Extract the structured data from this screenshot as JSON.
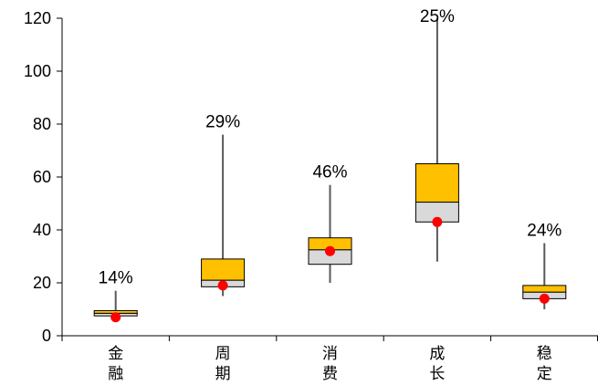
{
  "chart_data": {
    "type": "box",
    "title": "",
    "xlabel": "",
    "ylabel": "",
    "ylim": [
      0,
      120
    ],
    "yticks": [
      0,
      20,
      40,
      60,
      80,
      100,
      120
    ],
    "grid": false,
    "legend": "none",
    "categories": [
      "金融",
      "周期",
      "消费",
      "成长",
      "稳定"
    ],
    "boxes": [
      {
        "category": "金融",
        "min": 7,
        "q1": 7.5,
        "median": 8.5,
        "q3": 9.5,
        "max": 17,
        "mean": 7,
        "label": "14%"
      },
      {
        "category": "周期",
        "min": 15,
        "q1": 18.5,
        "median": 21,
        "q3": 29,
        "max": 76,
        "mean": 19,
        "label": "29%"
      },
      {
        "category": "消费",
        "min": 20,
        "q1": 27,
        "median": 32.5,
        "q3": 37,
        "max": 57,
        "mean": 32,
        "label": "46%"
      },
      {
        "category": "成长",
        "min": 28,
        "q1": 43,
        "median": 50.5,
        "q3": 65,
        "max": 120,
        "mean": 43,
        "label": "25%"
      },
      {
        "category": "稳定",
        "min": 10,
        "q1": 14,
        "median": 16.5,
        "q3": 19,
        "max": 35,
        "mean": 14,
        "label": "24%"
      }
    ],
    "colors": {
      "upper_box": "#FFC000",
      "lower_box": "#D9D9D9",
      "mean_marker": "#FF0000",
      "whisker": "#595959",
      "outline": "#000000",
      "axis": "#000000"
    }
  }
}
